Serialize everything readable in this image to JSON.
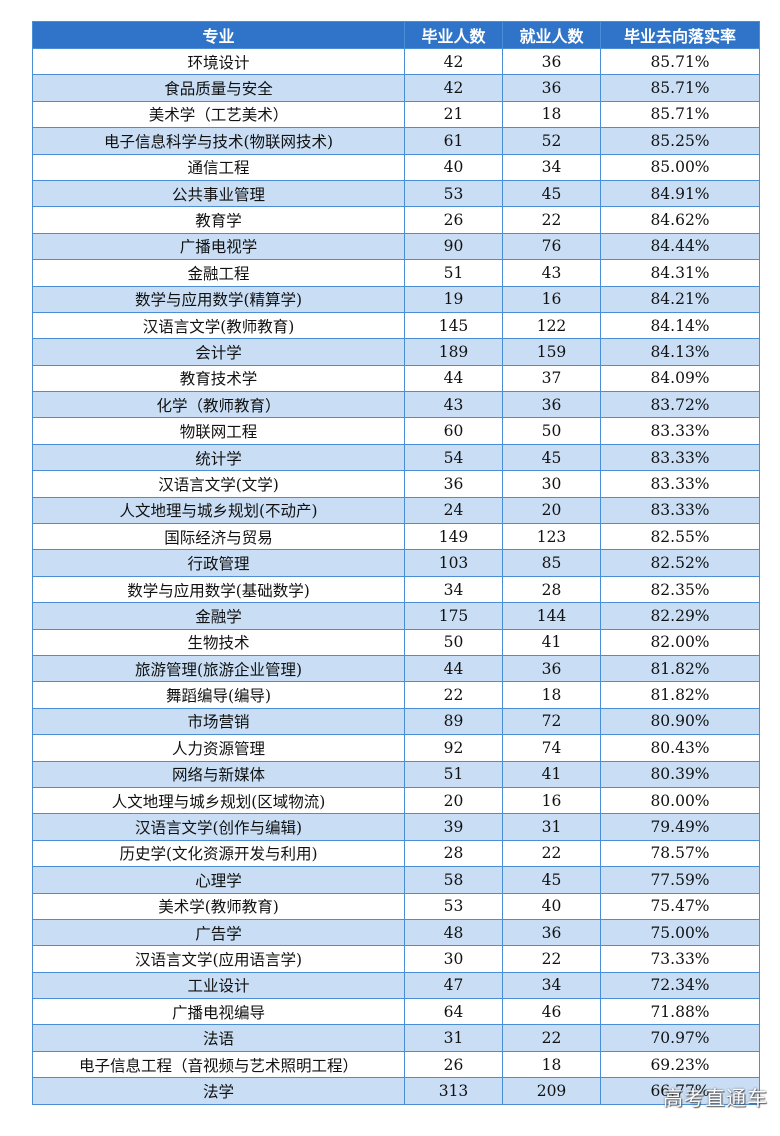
{
  "table": {
    "headers": [
      "专业",
      "毕业人数",
      "就业人数",
      "毕业去向落实率"
    ],
    "rows": [
      [
        "环境设计",
        "42",
        "36",
        "85.71%"
      ],
      [
        "食品质量与安全",
        "42",
        "36",
        "85.71%"
      ],
      [
        "美术学（工艺美术）",
        "21",
        "18",
        "85.71%"
      ],
      [
        "电子信息科学与技术(物联网技术)",
        "61",
        "52",
        "85.25%"
      ],
      [
        "通信工程",
        "40",
        "34",
        "85.00%"
      ],
      [
        "公共事业管理",
        "53",
        "45",
        "84.91%"
      ],
      [
        "教育学",
        "26",
        "22",
        "84.62%"
      ],
      [
        "广播电视学",
        "90",
        "76",
        "84.44%"
      ],
      [
        "金融工程",
        "51",
        "43",
        "84.31%"
      ],
      [
        "数学与应用数学(精算学)",
        "19",
        "16",
        "84.21%"
      ],
      [
        "汉语言文学(教师教育)",
        "145",
        "122",
        "84.14%"
      ],
      [
        "会计学",
        "189",
        "159",
        "84.13%"
      ],
      [
        "教育技术学",
        "44",
        "37",
        "84.09%"
      ],
      [
        "化学（教师教育）",
        "43",
        "36",
        "83.72%"
      ],
      [
        "物联网工程",
        "60",
        "50",
        "83.33%"
      ],
      [
        "统计学",
        "54",
        "45",
        "83.33%"
      ],
      [
        "汉语言文学(文学)",
        "36",
        "30",
        "83.33%"
      ],
      [
        "人文地理与城乡规划(不动产)",
        "24",
        "20",
        "83.33%"
      ],
      [
        "国际经济与贸易",
        "149",
        "123",
        "82.55%"
      ],
      [
        "行政管理",
        "103",
        "85",
        "82.52%"
      ],
      [
        "数学与应用数学(基础数学)",
        "34",
        "28",
        "82.35%"
      ],
      [
        "金融学",
        "175",
        "144",
        "82.29%"
      ],
      [
        "生物技术",
        "50",
        "41",
        "82.00%"
      ],
      [
        "旅游管理(旅游企业管理)",
        "44",
        "36",
        "81.82%"
      ],
      [
        "舞蹈编导(编导)",
        "22",
        "18",
        "81.82%"
      ],
      [
        "市场营销",
        "89",
        "72",
        "80.90%"
      ],
      [
        "人力资源管理",
        "92",
        "74",
        "80.43%"
      ],
      [
        "网络与新媒体",
        "51",
        "41",
        "80.39%"
      ],
      [
        "人文地理与城乡规划(区域物流)",
        "20",
        "16",
        "80.00%"
      ],
      [
        "汉语言文学(创作与编辑)",
        "39",
        "31",
        "79.49%"
      ],
      [
        "历史学(文化资源开发与利用)",
        "28",
        "22",
        "78.57%"
      ],
      [
        "心理学",
        "58",
        "45",
        "77.59%"
      ],
      [
        "美术学(教师教育)",
        "53",
        "40",
        "75.47%"
      ],
      [
        "广告学",
        "48",
        "36",
        "75.00%"
      ],
      [
        "汉语言文学(应用语言学)",
        "30",
        "22",
        "73.33%"
      ],
      [
        "工业设计",
        "47",
        "34",
        "72.34%"
      ],
      [
        "广播电视编导",
        "64",
        "46",
        "71.88%"
      ],
      [
        "法语",
        "31",
        "22",
        "70.97%"
      ],
      [
        "电子信息工程（音视频与艺术照明工程）",
        "26",
        "18",
        "69.23%"
      ],
      [
        "法学",
        "313",
        "209",
        "66.77%"
      ]
    ]
  },
  "watermark": {
    "text": "高考直通车"
  },
  "colors": {
    "header_bg": "#2f74c8",
    "stripe_bg": "#c9def5",
    "border": "#4a8fd6"
  }
}
